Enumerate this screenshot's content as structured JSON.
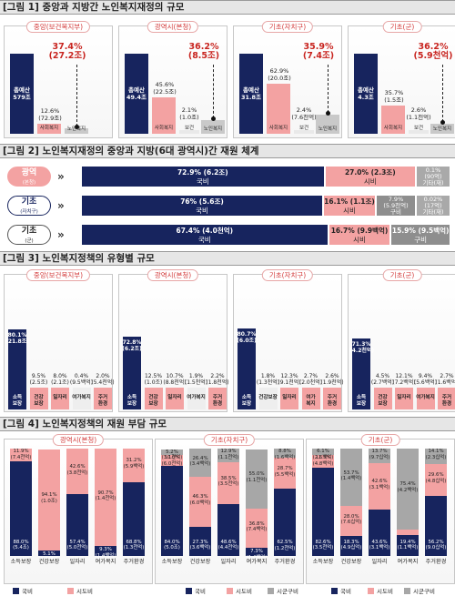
{
  "figures": {
    "fig1_title": "[그림 1] 중앙과 지방간 노인복지재정의 규모",
    "fig2_title": "[그림 2] 노인복지재정의 중앙과 지방(6대 광역시)간 재원 체계",
    "fig3_title": "[그림 3] 노인복지정책의 유형별 규모",
    "fig4_title": "[그림 4] 노인복지정책의 재원 부담 규모"
  },
  "colors": {
    "navy": "#17245e",
    "pink": "#f3a2a2",
    "gray": "#c9c9c9",
    "dark_gray": "#8e8e8e",
    "red": "#c8241f"
  },
  "chart_data": [
    {
      "id": "fig1",
      "type": "bar",
      "panels": [
        {
          "title": "중앙(보건복지부)",
          "total_label": "총예산\n579조",
          "welfare_pct": "12.6%\n(72.9조)",
          "welfare_cat": "사회복지",
          "elderly_pct": "37.4%\n(27.2조)",
          "elderly_cat": "노인복지",
          "values": [
            100,
            12.6,
            4.7
          ]
        },
        {
          "title": "광역시(본청)",
          "total_label": "총예산\n49.4조",
          "welfare_pct": "45.6%\n(22.5조)",
          "welfare_cat": "사회복지",
          "misc_pct": "2.1%\n(1.0조)",
          "misc_cat": "보건",
          "elderly_pct": "36.2%\n(8.5조)",
          "elderly_cat": "노인복지",
          "values": [
            100,
            45.6,
            2.1,
            16.5
          ]
        },
        {
          "title": "기초(자치구)",
          "total_label": "총예산\n31.8조",
          "welfare_pct": "62.9%\n(20.0조)",
          "welfare_cat": "사회복지",
          "misc_pct": "2.4%\n(7.6천억)",
          "misc_cat": "보건",
          "elderly_pct": "35.9%\n(7.4조)",
          "elderly_cat": "노인복지",
          "values": [
            100,
            62.9,
            2.4,
            23.3
          ]
        },
        {
          "title": "기초(군)",
          "total_label": "총예산\n4.3조",
          "welfare_pct": "35.7%\n(1.5조)",
          "welfare_cat": "사회복지",
          "misc_pct": "2.6%\n(1.1천억)",
          "misc_cat": "보건",
          "elderly_pct": "36.2%\n(5.9천억)",
          "elderly_cat": "노인복지",
          "values": [
            100,
            35.7,
            2.6,
            12.9
          ]
        }
      ]
    },
    {
      "id": "fig2",
      "type": "bar",
      "rows": [
        {
          "label": "광역",
          "sub": "(본청)",
          "segments": [
            {
              "pct": 72.9,
              "text": "72.9% (6.2조)",
              "name": "국비"
            },
            {
              "pct": 27.0,
              "text": "27.0% (2.3조)",
              "name": "시비"
            },
            {
              "pct": 0.1,
              "text": "0.1%\n(90억)",
              "name": "기타(재)"
            }
          ]
        },
        {
          "label": "기초",
          "sub": "(자치구)",
          "segments": [
            {
              "pct": 76,
              "text": "76% (5.6조)",
              "name": "국비"
            },
            {
              "pct": 16.1,
              "text": "16.1% (1.1조)",
              "name": "시비"
            },
            {
              "pct": 7.9,
              "text": "7.9%\n(5.9천억)",
              "name": "구비"
            },
            {
              "pct": 0.02,
              "text": "0.02%\n(17억)",
              "name": "기타(재)"
            }
          ]
        },
        {
          "label": "기초",
          "sub": "(군)",
          "segments": [
            {
              "pct": 67.4,
              "text": "67.4% (4.0천억)",
              "name": "국비"
            },
            {
              "pct": 16.7,
              "text": "16.7% (9.9백억)",
              "name": "시비"
            },
            {
              "pct": 15.9,
              "text": "15.9% (9.5백억)",
              "name": "구비"
            }
          ]
        }
      ]
    },
    {
      "id": "fig3",
      "type": "bar",
      "panels": [
        {
          "title": "중앙(보건복지부)",
          "categories": [
            "소득\n보장",
            "건강\n보장",
            "일자리",
            "여가복지",
            "주거\n환경"
          ],
          "values": [
            80.1,
            9.5,
            8.0,
            0.4,
            2.0
          ],
          "labels": [
            "80.1%\n(21.8조)",
            "9.5%\n(2.5조)",
            "8.0%\n(2.1조)",
            "0.4%\n(9.5백억)",
            "2.0%\n(5.4천억)"
          ]
        },
        {
          "title": "광역시(본청)",
          "categories": [
            "소득\n보장",
            "건강\n보장",
            "일자리",
            "여가복지",
            "주거\n환경"
          ],
          "values": [
            72.8,
            12.5,
            10.7,
            1.9,
            2.2
          ],
          "labels": [
            "72.8%\n(6.2조)",
            "12.5%\n(1.0조)",
            "10.7%\n(8.8천억)",
            "1.9%\n(1.5천억)",
            "2.2%\n(1.8천억)"
          ]
        },
        {
          "title": "기초(자치구)",
          "categories": [
            "소득\n보장",
            "건강보장",
            "일자리",
            "여가\n복지",
            "주거\n환경"
          ],
          "values": [
            80.7,
            1.8,
            12.3,
            2.7,
            2.6
          ],
          "labels": [
            "80.7%\n(6.0조)",
            "1.8%\n(1.3천억)",
            "12.3%\n(9.1천억)",
            "2.7%\n(2.0천억)",
            "2.6%\n(1.9천억)"
          ]
        },
        {
          "title": "기초(군)",
          "categories": [
            "소득\n보장",
            "건강\n보장",
            "일자리",
            "여가복지",
            "주거\n환경"
          ],
          "values": [
            71.3,
            4.5,
            12.1,
            9.4,
            2.7
          ],
          "labels": [
            "71.3%\n(4.2천억)",
            "4.5%\n(2.7백억)",
            "12.1%\n(7.2백억)",
            "9.4%\n(5.6백억)",
            "2.7%\n(1.6백억)"
          ]
        }
      ]
    },
    {
      "id": "fig4",
      "type": "bar",
      "legend": [
        "국비",
        "시도비",
        "시군구비"
      ],
      "panels": [
        {
          "title": "광역시(본청)",
          "categories": [
            "소득보장",
            "건강보장",
            "일자리",
            "여가복지",
            "주거환경"
          ],
          "series": [
            {
              "name": "국비",
              "values": [
                88.0,
                5.1,
                57.4,
                9.3,
                68.8
              ],
              "labels": [
                "88.0%\n(5.4조)",
                "5.1%\n(5.3백억)",
                "57.4%\n(5.0천억)",
                "9.3%\n(1.4백억)",
                "68.8%\n(1.3천억)"
              ]
            },
            {
              "name": "시도비",
              "values": [
                11.9,
                94.1,
                42.6,
                90.7,
                31.2
              ],
              "labels": [
                "11.9%\n(7.4천억)",
                "94.1%\n(1.0조)",
                "42.6%\n(3.8천억)",
                "90.7%\n(1.4천억)",
                "31.2%\n(5.9백억)"
              ]
            }
          ]
        },
        {
          "title": "기초(자치구)",
          "categories": [
            "소득보장",
            "건강보장",
            "일자리",
            "여가복지",
            "주거환경"
          ],
          "series": [
            {
              "name": "국비",
              "values": [
                84.0,
                27.3,
                48.6,
                7.3,
                62.5
              ],
              "labels": [
                "84.0%\n(5.0조)",
                "27.3%\n(3.6백억)",
                "48.6%\n(4.4천억)",
                "7.3%\n(1.4백억)",
                "62.5%\n(1.2천억)"
              ]
            },
            {
              "name": "시도비",
              "values": [
                10.0,
                46.3,
                38.5,
                36.8,
                28.7
              ],
              "labels": [
                "10.0%\n(6.0천억)",
                "46.3%\n(6.0백억)",
                "38.5%\n(3.5천억)",
                "36.8%\n(7.4백억)",
                "28.7%\n(5.5백억)"
              ]
            },
            {
              "name": "시군구비",
              "values": [
                5.2,
                26.4,
                12.9,
                55.0,
                8.8
              ],
              "labels": [
                "5.2%\n(3.1천억)",
                "26.4%\n(3.4백억)",
                "12.9%\n(1.1천억)",
                "55.0%\n(1.1천억)",
                "8.8%\n(1.6백억)"
              ]
            }
          ]
        },
        {
          "title": "기초(군)",
          "categories": [
            "소득보장",
            "건강보장",
            "일자리",
            "여가복지",
            "주거환경"
          ],
          "series": [
            {
              "name": "국비",
              "values": [
                82.6,
                18.3,
                43.6,
                19.4,
                56.2
              ],
              "labels": [
                "82.6%\n(3.5천억)",
                "18.3%\n(4.9십억)",
                "43.6%\n(3.1백억)",
                "19.4%\n(1.1백억)",
                "56.2%\n(9.0십억)"
              ]
            },
            {
              "name": "시도비",
              "values": [
                11.3,
                28.0,
                42.6,
                5.2,
                29.6
              ],
              "labels": [
                "11.3%\n(4.8백억)",
                "28.0%\n(7.6십억)",
                "42.6%\n(3.1백억)",
                "",
                "29.6%\n(4.8십억)"
              ]
            },
            {
              "name": "시군구비",
              "values": [
                6.1,
                53.7,
                13.7,
                75.4,
                14.1
              ],
              "labels": [
                "6.1%\n(2.6백억)",
                "53.7%\n(1.4백억)",
                "13.7%\n(9.7십억)",
                "75.4%\n(4.2백억)",
                "14.1%\n(2.3십억)"
              ]
            }
          ]
        }
      ]
    }
  ]
}
